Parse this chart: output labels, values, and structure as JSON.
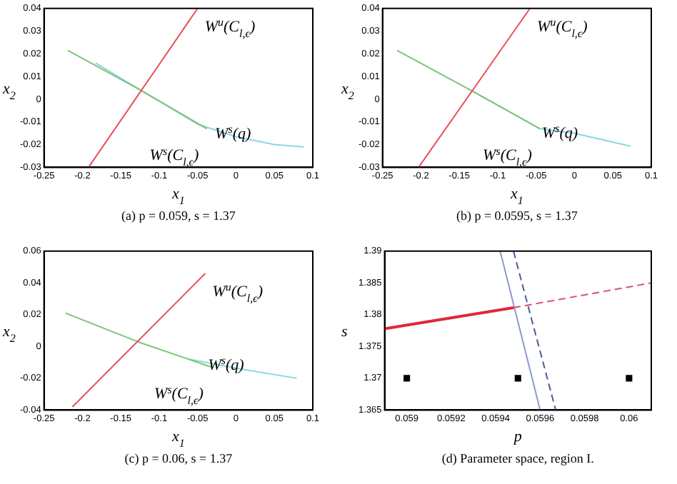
{
  "chart_data": [
    {
      "type": "line",
      "xlabel": "x$_{1}$",
      "ylabel": "x$_{2}$",
      "annotations": [
        "(a) p = 0.059, s = 1.37"
      ],
      "xlim": [
        -0.25,
        0.1
      ],
      "ylim": [
        -0.03,
        0.04
      ],
      "xticks": [
        -0.25,
        -0.2,
        -0.15,
        -0.1,
        -0.05,
        0,
        0.05,
        0.1
      ],
      "yticks": [
        -0.03,
        -0.02,
        -0.01,
        0,
        0.01,
        0.02,
        0.03,
        0.04
      ],
      "series": [
        {
          "name": "W$^{u}$(C$_{l,ϵ}$)",
          "color": "#e8505a",
          "x": [
            -0.192,
            -0.05
          ],
          "values": [
            -0.03,
            0.04
          ]
        },
        {
          "name": "W$^{s}$(C$_{l,ϵ}$)",
          "color": "#7cc576",
          "x": [
            -0.219,
            -0.124,
            -0.038
          ],
          "values": [
            0.0215,
            0.004,
            -0.013
          ]
        },
        {
          "name": "W$^{s}$(q)",
          "color": "#8ad8e0",
          "x": [
            -0.183,
            -0.124,
            -0.05,
            0,
            0.05,
            0.088
          ],
          "values": [
            0.016,
            0.004,
            -0.011,
            -0.0165,
            -0.02,
            -0.021
          ]
        }
      ]
    },
    {
      "type": "line",
      "xlabel": "x$_{1}$",
      "ylabel": "x$_{2}$",
      "annotations": [
        "(b) p = 0.0595, s = 1.37"
      ],
      "xlim": [
        -0.25,
        0.1
      ],
      "ylim": [
        -0.03,
        0.04
      ],
      "xticks": [
        -0.25,
        -0.2,
        -0.15,
        -0.1,
        -0.05,
        0,
        0.05,
        0.1
      ],
      "yticks": [
        -0.03,
        -0.02,
        -0.01,
        0,
        0.01,
        0.02,
        0.03,
        0.04
      ],
      "series": [
        {
          "name": "W$^{u}$(C$_{l,ϵ}$)",
          "color": "#e8505a",
          "x": [
            -0.203,
            -0.058
          ],
          "values": [
            -0.03,
            0.04
          ]
        },
        {
          "name": "W$^{s}$(C$_{l,ϵ}$)",
          "color": "#7cc576",
          "x": [
            -0.231,
            -0.133,
            -0.045
          ],
          "values": [
            0.0215,
            0.0036,
            -0.013
          ]
        },
        {
          "name": "W$^{s}$(q)",
          "color": "#8ad8e0",
          "x": [
            -0.135,
            -0.045,
            0,
            0.073
          ],
          "values": [
            0.004,
            -0.013,
            -0.015,
            -0.0207
          ]
        }
      ]
    },
    {
      "type": "line",
      "xlabel": "x$_{1}$",
      "ylabel": "x$_{2}$",
      "annotations": [
        "(c) p = 0.06, s = 1.37"
      ],
      "xlim": [
        -0.25,
        0.1
      ],
      "ylim": [
        -0.04,
        0.06
      ],
      "xticks": [
        -0.25,
        -0.2,
        -0.15,
        -0.1,
        -0.05,
        0,
        0.05,
        0.1
      ],
      "yticks": [
        -0.04,
        -0.02,
        0,
        0.02,
        0.04,
        0.06
      ],
      "series": [
        {
          "name": "W$^{u}$(C$_{l,ϵ}$)",
          "color": "#e8505a",
          "x": [
            -0.213,
            -0.04
          ],
          "values": [
            -0.038,
            0.046
          ]
        },
        {
          "name": "W$^{s}$(C$_{l,ϵ}$)",
          "color": "#7cc576",
          "x": [
            -0.222,
            -0.128,
            -0.032
          ],
          "values": [
            0.021,
            0.003,
            -0.013
          ]
        },
        {
          "name": "W$^{s}$(q)",
          "color": "#8ad8e0",
          "x": [
            -0.061,
            0.004,
            0.079
          ],
          "values": [
            -0.008,
            -0.014,
            -0.02
          ]
        }
      ]
    },
    {
      "type": "line",
      "xlabel": "p",
      "ylabel": "s",
      "annotations": [
        "(d) Parameter space, region I."
      ],
      "xlim": [
        0.0589,
        0.0601
      ],
      "ylim": [
        1.365,
        1.39
      ],
      "xticks": [
        0.059,
        0.0592,
        0.0594,
        0.0596,
        0.0598,
        0.06
      ],
      "yticks": [
        1.365,
        1.37,
        1.375,
        1.38,
        1.385,
        1.39
      ],
      "series": [
        {
          "color": "#e0283c",
          "x": [
            0.0589,
            0.05948
          ],
          "values": [
            1.3778,
            1.3811
          ],
          "line_style": "solid"
        },
        {
          "color": "#e0506a",
          "x": [
            0.05948,
            0.0601
          ],
          "values": [
            1.3811,
            1.385
          ],
          "line_style": "dashed"
        },
        {
          "color": "#8a9ad0",
          "x": [
            0.05942,
            0.0596
          ],
          "values": [
            1.39,
            1.365
          ],
          "line_style": "solid"
        },
        {
          "color": "#4a5a9a",
          "x": [
            0.05948,
            0.05967
          ],
          "values": [
            1.39,
            1.365
          ],
          "line_style": "dashed"
        },
        {
          "type": "scatter",
          "marker": "square",
          "color": "#000000",
          "x": [
            0.059,
            0.0595,
            0.06
          ],
          "values": [
            1.37,
            1.37,
            1.37
          ]
        }
      ]
    }
  ]
}
